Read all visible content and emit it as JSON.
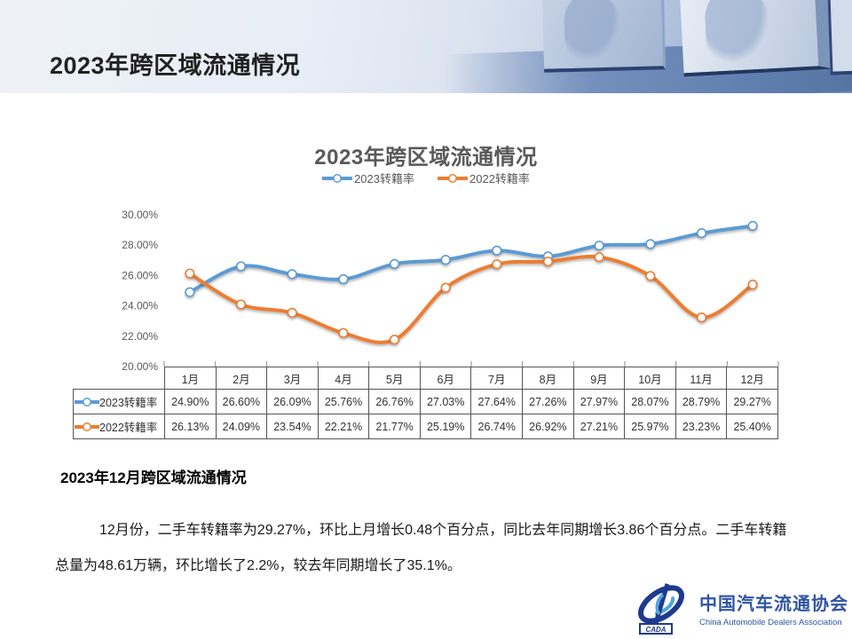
{
  "slide_title": "2023年跨区域流通情况",
  "chart_data": {
    "type": "line",
    "title": "2023年跨区域流通情况",
    "categories": [
      "1月",
      "2月",
      "3月",
      "4月",
      "5月",
      "6月",
      "7月",
      "8月",
      "9月",
      "10月",
      "11月",
      "12月"
    ],
    "series": [
      {
        "name": "2023转籍率",
        "color": "#5B9BD5",
        "values": [
          24.9,
          26.6,
          26.09,
          25.76,
          26.76,
          27.03,
          27.64,
          27.26,
          27.97,
          28.07,
          28.79,
          29.27
        ]
      },
      {
        "name": "2022转籍率",
        "color": "#ED7D31",
        "values": [
          26.13,
          24.09,
          23.54,
          22.21,
          21.77,
          25.19,
          26.74,
          26.92,
          27.21,
          25.97,
          23.23,
          25.4
        ]
      }
    ],
    "ylim": [
      20,
      30
    ],
    "ytick_step": 2,
    "ytick_labels": [
      "30.00%",
      "28.00%",
      "26.00%",
      "24.00%",
      "22.00%",
      "20.00%"
    ],
    "grid": false,
    "smooth": true,
    "marker": "white-circle",
    "legend_position": "top"
  },
  "table": {
    "header": [
      "1月",
      "2月",
      "3月",
      "4月",
      "5月",
      "6月",
      "7月",
      "8月",
      "9月",
      "10月",
      "11月",
      "12月"
    ],
    "rows": [
      {
        "label": "2023转籍率",
        "color": "#5B9BD5",
        "cells": [
          "24.90%",
          "26.60%",
          "26.09%",
          "25.76%",
          "26.76%",
          "27.03%",
          "27.64%",
          "27.26%",
          "27.97%",
          "28.07%",
          "28.79%",
          "29.27%"
        ]
      },
      {
        "label": "2022转籍率",
        "color": "#ED7D31",
        "cells": [
          "26.13%",
          "24.09%",
          "23.54%",
          "22.21%",
          "21.77%",
          "25.19%",
          "26.74%",
          "26.92%",
          "27.21%",
          "25.97%",
          "23.23%",
          "25.40%"
        ]
      }
    ]
  },
  "section": {
    "heading": "2023年12月跨区域流通情况",
    "paragraph_lines": [
      "12月份，二手车转籍率为29.27%，环比上月增长0.48个百分点，同比去年同期增长3.86个百分点。二手车转籍",
      "总量为48.61万辆，环比增长了2.2%，较去年同期增长了35.1%。"
    ]
  },
  "footer": {
    "logo_mark": "CADA",
    "org_zh": "中国汽车流通协会",
    "org_en": "China Automobile Dealers Association",
    "brand_blue": "#2F55A4"
  }
}
